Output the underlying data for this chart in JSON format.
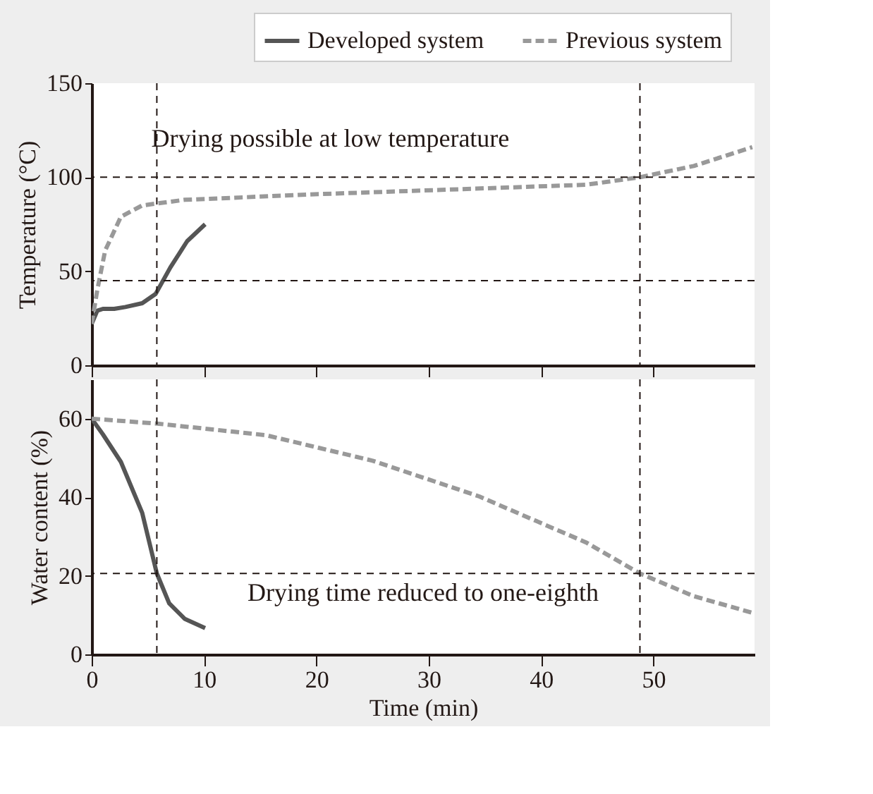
{
  "chart_data": [
    {
      "type": "line",
      "ylabel": "Temperature (°C)",
      "xlim": [
        0,
        59
      ],
      "xticks": [
        0,
        10,
        20,
        30,
        40,
        50
      ],
      "ylim": [
        0,
        150
      ],
      "yticks": [
        0,
        50,
        100,
        150
      ],
      "tick_labels": "y",
      "grid": false,
      "legend": "top right",
      "series": [
        {
          "name": "Developed system",
          "color": "#555555",
          "line_style": "solid",
          "x": [
            0,
            0.5,
            1,
            2,
            3,
            4.5,
            5.7,
            7,
            8.5,
            10.1
          ],
          "values": [
            22,
            29,
            30,
            30,
            31,
            33,
            38,
            52,
            66,
            75
          ]
        },
        {
          "name": "Previous system",
          "color": "#999999",
          "line_style": "dashed",
          "x": [
            0,
            0.5,
            1.2,
            2.6,
            4.5,
            8.3,
            20.2,
            34.5,
            44,
            48.8,
            53.6,
            58.8
          ],
          "values": [
            22,
            40,
            61,
            79,
            85,
            88,
            91,
            94,
            96,
            100,
            106,
            116
          ]
        }
      ],
      "ref_lines": [
        {
          "axis": "y",
          "value": 100
        },
        {
          "axis": "x",
          "value": 48.8
        },
        {
          "axis": "y",
          "value": 45
        },
        {
          "axis": "x",
          "value": 5.8
        }
      ],
      "annotations": [
        "Drying possible at low temperature"
      ]
    },
    {
      "type": "line",
      "xlabel": "Time (min)",
      "ylabel": "Water content (%)",
      "xlim": [
        0,
        59
      ],
      "xticks": [
        0,
        10,
        20,
        30,
        40,
        50
      ],
      "ylim": [
        0,
        70
      ],
      "yticks": [
        0,
        20,
        40,
        60
      ],
      "grid": false,
      "series": [
        {
          "color": "#555555",
          "line_style": "solid",
          "x": [
            0,
            1,
            2.6,
            4.5,
            5.8,
            6.9,
            8.3,
            10.1
          ],
          "values": [
            60,
            56,
            49,
            36,
            20.6,
            13,
            9,
            6.7
          ]
        },
        {
          "color": "#999999",
          "line_style": "dashed",
          "x": [
            0,
            6,
            15.5,
            25,
            34.5,
            44,
            48.8,
            53.6,
            58.8
          ],
          "values": [
            60,
            58.7,
            55.8,
            49.3,
            40.2,
            28.5,
            20.6,
            14.8,
            10.6
          ]
        }
      ],
      "ref_lines": [
        {
          "axis": "y",
          "value": 20.6
        },
        {
          "axis": "x",
          "value": 5.8
        },
        {
          "axis": "x",
          "value": 48.8
        }
      ],
      "annotations": [
        "Drying time reduced to one-eighth"
      ]
    }
  ]
}
